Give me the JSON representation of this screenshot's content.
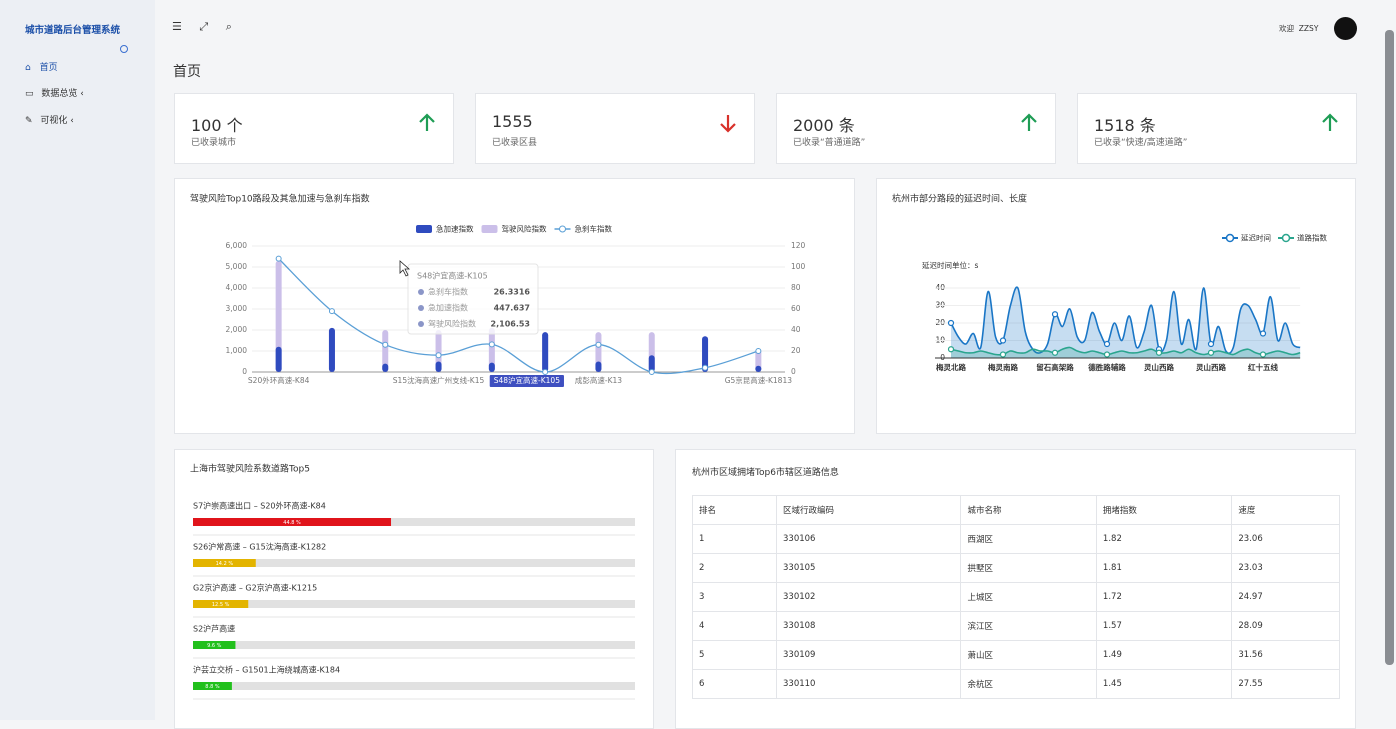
{
  "sidebar": {
    "title": "城市道路后台管理系统",
    "menu": [
      "首页",
      "数据总览",
      "可视化"
    ]
  },
  "header": {
    "welcome": "欢迎",
    "user": "ZZSY"
  },
  "page_title": "首页",
  "stats": [
    {
      "value": "100 个",
      "label": "已收录城市",
      "trend": "up"
    },
    {
      "value": "1555",
      "label": "已收录区县",
      "trend": "down"
    },
    {
      "value": "2000 条",
      "label": "已收录“普通道路”",
      "trend": "up"
    },
    {
      "value": "1518 条",
      "label": "已收录“快速/高速道路”",
      "trend": "up"
    }
  ],
  "chart_data": [
    {
      "type": "bar-line",
      "title": "驾驶风险Top10路段及其急加速与急刹车指数",
      "categories": [
        "S20外环高速-K84",
        null,
        null,
        "S15沈海高速广州支线-K15",
        "S48沪宜高速-K105",
        null,
        "成彭高速-K13",
        null,
        null,
        "G5京昆高速-K1813"
      ],
      "highlight": 4,
      "series": [
        {
          "name": "急加速指数",
          "type": "bar",
          "color": "#2f4bbf",
          "values": [
            1200,
            2100,
            400,
            500,
            447.637,
            1900,
            500,
            800,
            1700,
            300
          ]
        },
        {
          "name": "驾驶风险指数",
          "type": "bar",
          "color": "#cbbfe9",
          "values": [
            5300,
            2100,
            2000,
            2000,
            2106.53,
            1900,
            1900,
            1900,
            1700,
            1100
          ]
        },
        {
          "name": "急刹车指数",
          "type": "line",
          "axis": "y2",
          "color": "#5a9fd6",
          "values": [
            108,
            58,
            26,
            16,
            26.3316,
            0,
            26,
            0,
            4,
            20
          ]
        }
      ],
      "ylim": [
        0,
        6000
      ],
      "yticks": [
        0,
        {
          "value": 1000,
          "label": "1,000"
        },
        {
          "value": 2000,
          "label": "2,000"
        },
        {
          "value": 3000,
          "label": "3,000"
        },
        {
          "value": 4000,
          "label": "4,000"
        },
        {
          "value": 5000,
          "label": "5,000"
        },
        {
          "value": 6000,
          "label": "6,000"
        }
      ],
      "y2lim": [
        0,
        120
      ],
      "y2ticks": [
        0,
        20,
        40,
        60,
        80,
        100,
        120
      ],
      "grid": true,
      "tooltip": {
        "title": "S48沪宜高速-K105",
        "items": [
          {
            "name": "急刹车指数",
            "value": "26.3316"
          },
          {
            "name": "急加速指数",
            "value": "447.637"
          },
          {
            "name": "驾驶风险指数",
            "value": "2,106.53"
          }
        ]
      }
    },
    {
      "type": "line",
      "title": "杭州市部分路段的延迟时间、长度",
      "y_label": "延迟时间单位：s",
      "categories": [
        "梅灵北路",
        null,
        null,
        null,
        null,
        null,
        null,
        "梅灵南路",
        null,
        null,
        null,
        null,
        null,
        null,
        "留石高架路",
        null,
        null,
        null,
        null,
        null,
        null,
        "德胜路辅路",
        null,
        null,
        null,
        null,
        null,
        null,
        "灵山西路",
        null,
        null,
        null,
        null,
        null,
        null,
        "灵山西路",
        null,
        null,
        null,
        null,
        null,
        null,
        "红十五线",
        null,
        null,
        null,
        null,
        null
      ],
      "series": [
        {
          "name": "延迟时间",
          "color": "#1a76c6",
          "values": [
            20,
            12,
            8,
            14,
            6,
            38,
            12,
            10,
            30,
            40,
            15,
            5,
            3,
            8,
            25,
            18,
            28,
            12,
            10,
            26,
            15,
            8,
            20,
            10,
            24,
            6,
            15,
            30,
            5,
            10,
            38,
            8,
            22,
            5,
            40,
            8,
            18,
            4,
            6,
            28,
            30,
            22,
            14,
            35,
            10,
            20,
            8,
            6
          ]
        },
        {
          "name": "道路指数",
          "color": "#2aa58e",
          "values": [
            5,
            4,
            3,
            3,
            4,
            3,
            2,
            2,
            4,
            3,
            3,
            5,
            4,
            4,
            3,
            5,
            6,
            4,
            3,
            4,
            3,
            2,
            3,
            4,
            3,
            3,
            4,
            5,
            3,
            3,
            4,
            3,
            5,
            3,
            2,
            3,
            4,
            3,
            2,
            4,
            5,
            3,
            2,
            3,
            4,
            3,
            2,
            3
          ]
        }
      ],
      "ylim": [
        0,
        40
      ],
      "yticks": [
        0,
        10,
        20,
        30,
        40
      ],
      "grid": true,
      "legend": "top-right"
    },
    {
      "type": "progress",
      "title": "上海市驾驶风险系数道路Top5",
      "categories": [
        "S7沪崇高速出口 – S20外环高速-K84",
        "S26沪常高速 – G15沈海高速-K1282",
        "G2京沪高速 – G2京沪高速-K1215",
        "S2沪芦高速",
        "沪芸立交桥 – G1501上海绕城高速-K184"
      ],
      "values": [
        44.8,
        14.2,
        12.5,
        9.6,
        8.8
      ],
      "value_labels": [
        "44.8 %",
        "14.2 %",
        "12.5 %",
        "9.6 %",
        "8.8 %"
      ],
      "colors": [
        "#e0141b",
        "#e3b400",
        "#e3b400",
        "#22c01c",
        "#22c01c"
      ],
      "xlim": [
        0,
        100
      ]
    }
  ],
  "table": {
    "title": "杭州市区域拥堵Top6市辖区道路信息",
    "columns": [
      "排名",
      "区域行政编码",
      "城市名称",
      "拥堵指数",
      "速度"
    ],
    "rows": [
      [
        "1",
        "330106",
        "西湖区",
        "1.82",
        "23.06"
      ],
      [
        "2",
        "330105",
        "拱墅区",
        "1.81",
        "23.03"
      ],
      [
        "3",
        "330102",
        "上城区",
        "1.72",
        "24.97"
      ],
      [
        "4",
        "330108",
        "滨江区",
        "1.57",
        "28.09"
      ],
      [
        "5",
        "330109",
        "萧山区",
        "1.49",
        "31.56"
      ],
      [
        "6",
        "330110",
        "余杭区",
        "1.45",
        "27.55"
      ]
    ]
  }
}
